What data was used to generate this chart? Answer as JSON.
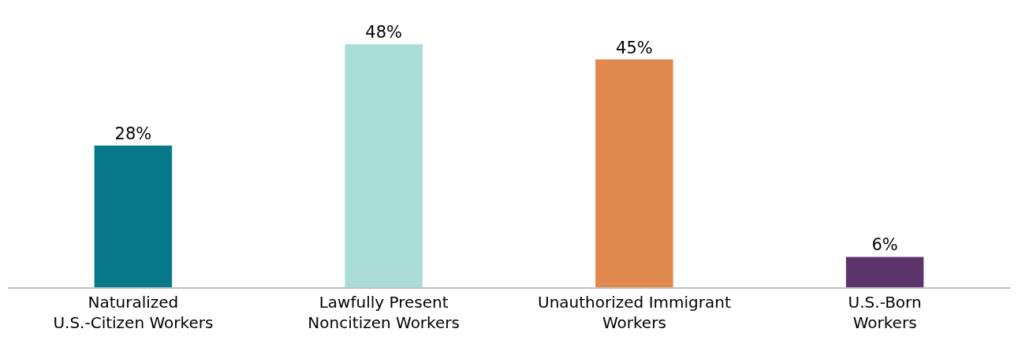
{
  "chart_data": {
    "type": "bar",
    "categories": [
      "Naturalized\nU.S.-Citizen Workers",
      "Lawfully Present\nNoncitizen Workers",
      "Unauthorized Immigrant\nWorkers",
      "U.S.-Born\nWorkers"
    ],
    "values": [
      28,
      48,
      45,
      6
    ],
    "colors": [
      "#07788a",
      "#aadcd8",
      "#e08a50",
      "#5c336b"
    ],
    "value_labels": [
      "28%",
      "48%",
      "45%",
      "6%"
    ]
  }
}
